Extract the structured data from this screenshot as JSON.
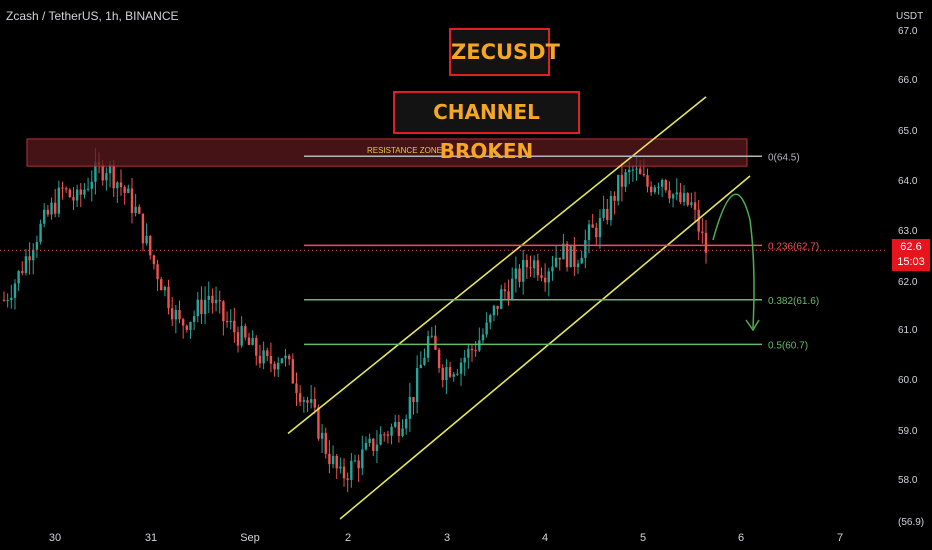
{
  "header": {
    "symbol_text": "Zcash / TetherUS, 1h, BINANCE"
  },
  "annotations": {
    "title": "ZECUSDT",
    "subtitle": "CHANNEL BROKEN",
    "resistance_label": "RESISTANCE ZONE"
  },
  "current_price": {
    "value": "62.6",
    "countdown": "15:03"
  },
  "colors": {
    "background": "#000000",
    "up": "#26a69a",
    "down": "#ef5350",
    "channel": "#e6e65a",
    "fib_green": "#66bb6a",
    "fib_red": "#ef5350",
    "resistance_fill": "#5c1a1d",
    "arrow": "#4caf50",
    "accent_text": "#f5a623"
  },
  "chart_data": {
    "type": "candlestick",
    "y_axis_unit": "USDT",
    "y_ticks": [
      "67.0",
      "66.0",
      "65.0",
      "64.0",
      "63.0",
      "62.0",
      "61.0",
      "60.0",
      "59.0",
      "58.0",
      "(56.9)"
    ],
    "x_ticks": [
      "30",
      "31",
      "Sep",
      "2",
      "3",
      "4",
      "5",
      "6",
      "7"
    ],
    "resistance_zone": {
      "low": 64.3,
      "high": 64.85,
      "label": "RESISTANCE ZONE"
    },
    "fib_levels": [
      {
        "label": "0(64.5)",
        "value": 64.5,
        "color": "#b2b5be"
      },
      {
        "label": "0.236(62.7)",
        "value": 62.7,
        "color": "#ef5350"
      },
      {
        "label": "0.382(61.6)",
        "value": 61.6,
        "color": "#66bb6a"
      },
      {
        "label": "0.5(60.7)",
        "value": 60.7,
        "color": "#66bb6a"
      }
    ],
    "channel": {
      "upper": [
        {
          "x": 0,
          "y": 58.9
        },
        {
          "x": 1,
          "y": 65.7
        }
      ],
      "lower": [
        {
          "x": 0,
          "y": 57.8
        },
        {
          "x": 1,
          "y": 64.1
        }
      ]
    },
    "price_path": [
      [
        0,
        61.6
      ],
      [
        4,
        62.1
      ],
      [
        8,
        62.8
      ],
      [
        12,
        63.3
      ],
      [
        16,
        63.8
      ],
      [
        20,
        63.6
      ],
      [
        24,
        64.1
      ],
      [
        28,
        64.3
      ],
      [
        32,
        63.9
      ],
      [
        36,
        63.4
      ],
      [
        40,
        62.5
      ],
      [
        44,
        61.8
      ],
      [
        48,
        61.1
      ],
      [
        52,
        61.3
      ],
      [
        56,
        61.7
      ],
      [
        60,
        61.2
      ],
      [
        64,
        60.9
      ],
      [
        68,
        60.6
      ],
      [
        72,
        60.3
      ],
      [
        76,
        60.5
      ],
      [
        80,
        59.9
      ],
      [
        84,
        59.4
      ],
      [
        88,
        58.6
      ],
      [
        92,
        58.0
      ],
      [
        96,
        58.3
      ],
      [
        100,
        58.6
      ],
      [
        104,
        58.9
      ],
      [
        108,
        59.1
      ],
      [
        112,
        59.7
      ],
      [
        116,
        60.8
      ],
      [
        120,
        60.2
      ],
      [
        124,
        60.3
      ],
      [
        128,
        60.6
      ],
      [
        132,
        61.0
      ],
      [
        136,
        61.7
      ],
      [
        140,
        62.0
      ],
      [
        144,
        62.4
      ],
      [
        148,
        62.2
      ],
      [
        152,
        62.6
      ],
      [
        156,
        62.4
      ],
      [
        160,
        62.9
      ],
      [
        164,
        63.2
      ],
      [
        168,
        63.9
      ],
      [
        172,
        64.2
      ],
      [
        176,
        63.9
      ],
      [
        180,
        64.1
      ],
      [
        184,
        63.6
      ],
      [
        188,
        63.5
      ],
      [
        192,
        62.6
      ]
    ],
    "current_price": 62.6
  }
}
